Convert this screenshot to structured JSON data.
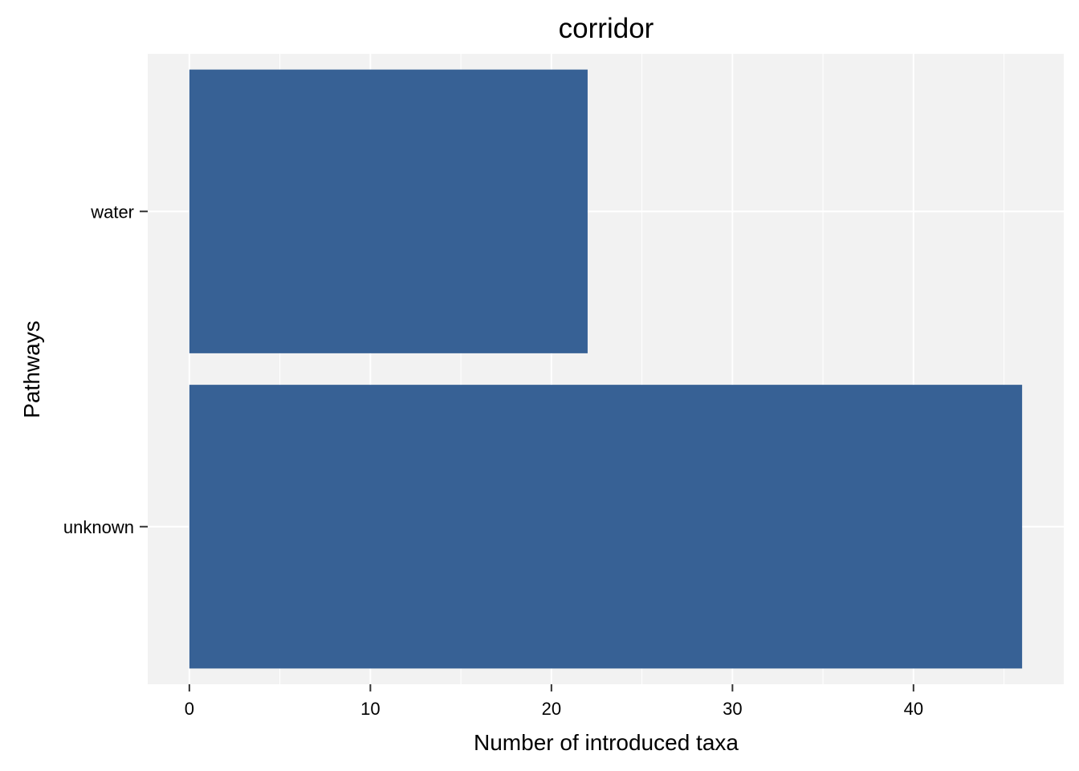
{
  "chart_data": {
    "type": "bar",
    "orientation": "horizontal",
    "title": "corridor",
    "xlabel": "Number of introduced taxa",
    "ylabel": "Pathways",
    "categories": [
      "unknown",
      "water"
    ],
    "values": [
      46,
      22
    ],
    "xlim": [
      -2.3,
      48.3
    ],
    "x_ticks": [
      0,
      10,
      20,
      30,
      40
    ],
    "x_tick_labels": [
      "0",
      "10",
      "20",
      "30",
      "40"
    ],
    "grid": true,
    "legend": "none",
    "bar_color": "#376195",
    "panel_background": "#f2f2f2",
    "grid_color": "#ffffff"
  }
}
